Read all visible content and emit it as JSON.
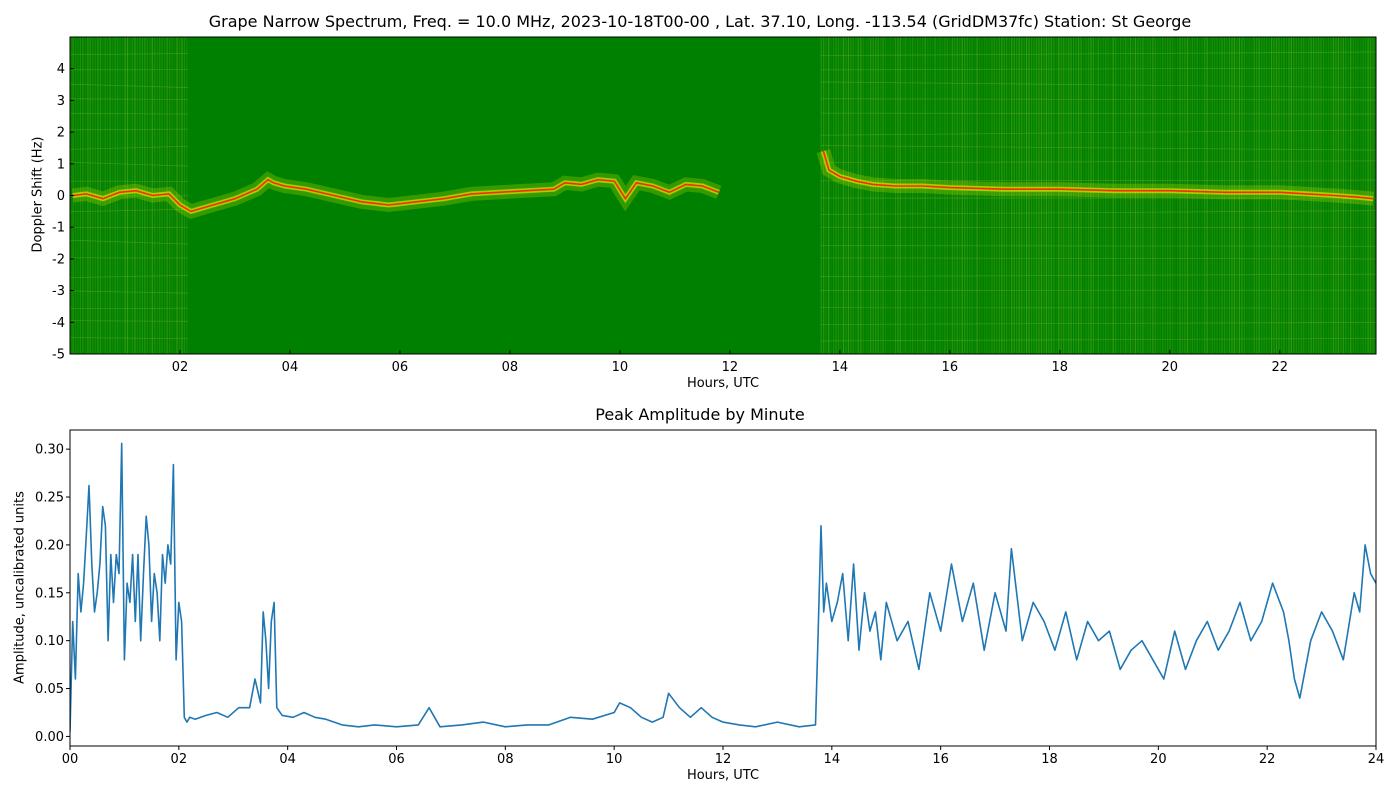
{
  "chart_data": [
    {
      "type": "heatmap",
      "title": "Grape Narrow Spectrum, Freq. = 10.0 MHz, 2023-10-18T00-00 , Lat.  37.10, Long. -113.54 (GridDM37fc) Station: St George",
      "xlabel": "Hours, UTC",
      "ylabel": "Doppler Shift (Hz)",
      "xlim": [
        0,
        23.75
      ],
      "ylim": [
        -5,
        5
      ],
      "x_ticks": [
        "02",
        "04",
        "06",
        "08",
        "10",
        "12",
        "14",
        "16",
        "18",
        "20",
        "22"
      ],
      "x_tick_values": [
        2,
        4,
        6,
        8,
        10,
        12,
        14,
        16,
        18,
        20,
        22
      ],
      "y_ticks": [
        "-5",
        "-4",
        "-3",
        "-2",
        "-1",
        "0",
        "1",
        "2",
        "3",
        "4"
      ],
      "y_tick_values": [
        -5,
        -4,
        -3,
        -2,
        -1,
        0,
        1,
        2,
        3,
        4
      ],
      "colors": {
        "background": "#008000",
        "mid": "#d4e600",
        "high": "#ff2a00"
      },
      "doppler_trace": {
        "x": [
          0.05,
          0.3,
          0.6,
          0.9,
          1.2,
          1.5,
          1.8,
          2.0,
          2.2,
          2.6,
          3.0,
          3.4,
          3.6,
          3.7,
          3.9,
          4.3,
          4.8,
          5.3,
          5.8,
          6.3,
          6.8,
          7.3,
          7.8,
          8.3,
          8.8,
          9.0,
          9.3,
          9.6,
          9.9,
          10.1,
          10.3,
          10.6,
          10.9,
          11.2,
          11.5,
          11.8,
          13.7,
          13.8,
          14.0,
          14.3,
          14.6,
          15.0,
          15.5,
          16.0,
          17.0,
          18.0,
          19.0,
          20.0,
          21.0,
          22.0,
          22.5,
          23.0,
          23.4,
          23.7
        ],
        "y": [
          0.0,
          0.05,
          -0.1,
          0.1,
          0.15,
          0.0,
          0.05,
          -0.3,
          -0.5,
          -0.3,
          -0.1,
          0.2,
          0.5,
          0.4,
          0.3,
          0.2,
          0.0,
          -0.2,
          -0.3,
          -0.2,
          -0.1,
          0.05,
          0.1,
          0.15,
          0.2,
          0.4,
          0.35,
          0.5,
          0.45,
          -0.1,
          0.4,
          0.3,
          0.1,
          0.35,
          0.3,
          0.1,
          1.4,
          0.8,
          0.6,
          0.45,
          0.35,
          0.3,
          0.3,
          0.25,
          0.2,
          0.2,
          0.15,
          0.15,
          0.1,
          0.1,
          0.05,
          0.0,
          -0.05,
          -0.1
        ]
      }
    },
    {
      "type": "line",
      "title": "Peak Amplitude by Minute",
      "xlabel": "Hours, UTC",
      "ylabel": "Amplitude, uncalibrated units",
      "xlim": [
        0,
        24
      ],
      "ylim": [
        -0.01,
        0.32
      ],
      "x_ticks": [
        "00",
        "02",
        "04",
        "06",
        "08",
        "10",
        "12",
        "14",
        "16",
        "18",
        "20",
        "22",
        "24"
      ],
      "x_tick_values": [
        0,
        2,
        4,
        6,
        8,
        10,
        12,
        14,
        16,
        18,
        20,
        22,
        24
      ],
      "y_ticks": [
        "0.00",
        "0.05",
        "0.10",
        "0.15",
        "0.20",
        "0.25",
        "0.30"
      ],
      "y_tick_values": [
        0,
        0.05,
        0.1,
        0.15,
        0.2,
        0.25,
        0.3
      ],
      "line_color": "#1f77b4",
      "series": [
        {
          "x": [
            0.0,
            0.05,
            0.1,
            0.15,
            0.2,
            0.25,
            0.3,
            0.35,
            0.4,
            0.45,
            0.5,
            0.55,
            0.6,
            0.65,
            0.7,
            0.75,
            0.8,
            0.85,
            0.9,
            0.95,
            1.0,
            1.05,
            1.1,
            1.15,
            1.2,
            1.25,
            1.3,
            1.35,
            1.4,
            1.45,
            1.5,
            1.55,
            1.6,
            1.65,
            1.7,
            1.75,
            1.8,
            1.85,
            1.9,
            1.95,
            2.0,
            2.05,
            2.1,
            2.15,
            2.2,
            2.3,
            2.5,
            2.7,
            2.9,
            3.1,
            3.3,
            3.4,
            3.5,
            3.55,
            3.6,
            3.65,
            3.7,
            3.75,
            3.8,
            3.9,
            4.1,
            4.3,
            4.5,
            4.7,
            5.0,
            5.3,
            5.6,
            6.0,
            6.4,
            6.6,
            6.8,
            7.2,
            7.6,
            8.0,
            8.4,
            8.8,
            9.2,
            9.6,
            10.0,
            10.1,
            10.3,
            10.5,
            10.7,
            10.9,
            11.0,
            11.2,
            11.4,
            11.6,
            11.8,
            12.0,
            12.3,
            12.6,
            13.0,
            13.4,
            13.7,
            13.75,
            13.8,
            13.85,
            13.9,
            14.0,
            14.1,
            14.2,
            14.3,
            14.4,
            14.5,
            14.6,
            14.7,
            14.8,
            14.9,
            15.0,
            15.2,
            15.4,
            15.6,
            15.8,
            16.0,
            16.2,
            16.4,
            16.6,
            16.8,
            17.0,
            17.2,
            17.3,
            17.5,
            17.7,
            17.9,
            18.1,
            18.3,
            18.5,
            18.7,
            18.9,
            19.1,
            19.3,
            19.5,
            19.7,
            19.9,
            20.1,
            20.3,
            20.5,
            20.7,
            20.9,
            21.1,
            21.3,
            21.5,
            21.7,
            21.9,
            22.1,
            22.3,
            22.4,
            22.5,
            22.6,
            22.8,
            23.0,
            23.2,
            23.4,
            23.6,
            23.7,
            23.8,
            23.9,
            24.0
          ],
          "values": [
            0.005,
            0.12,
            0.06,
            0.17,
            0.13,
            0.16,
            0.21,
            0.262,
            0.18,
            0.13,
            0.15,
            0.18,
            0.24,
            0.22,
            0.1,
            0.19,
            0.14,
            0.19,
            0.17,
            0.306,
            0.08,
            0.16,
            0.14,
            0.19,
            0.12,
            0.19,
            0.1,
            0.17,
            0.23,
            0.2,
            0.12,
            0.17,
            0.15,
            0.1,
            0.19,
            0.16,
            0.2,
            0.18,
            0.284,
            0.08,
            0.14,
            0.12,
            0.02,
            0.015,
            0.02,
            0.018,
            0.022,
            0.025,
            0.02,
            0.03,
            0.03,
            0.06,
            0.035,
            0.13,
            0.1,
            0.05,
            0.12,
            0.14,
            0.03,
            0.022,
            0.02,
            0.025,
            0.02,
            0.018,
            0.012,
            0.01,
            0.012,
            0.01,
            0.012,
            0.03,
            0.01,
            0.012,
            0.015,
            0.01,
            0.012,
            0.012,
            0.02,
            0.018,
            0.025,
            0.035,
            0.03,
            0.02,
            0.015,
            0.02,
            0.045,
            0.03,
            0.02,
            0.03,
            0.02,
            0.015,
            0.012,
            0.01,
            0.015,
            0.01,
            0.012,
            0.11,
            0.22,
            0.13,
            0.16,
            0.12,
            0.14,
            0.17,
            0.1,
            0.18,
            0.09,
            0.15,
            0.11,
            0.13,
            0.08,
            0.14,
            0.1,
            0.12,
            0.07,
            0.15,
            0.11,
            0.18,
            0.12,
            0.16,
            0.09,
            0.15,
            0.11,
            0.196,
            0.1,
            0.14,
            0.12,
            0.09,
            0.13,
            0.08,
            0.12,
            0.1,
            0.11,
            0.07,
            0.09,
            0.1,
            0.08,
            0.06,
            0.11,
            0.07,
            0.1,
            0.12,
            0.09,
            0.11,
            0.14,
            0.1,
            0.12,
            0.16,
            0.13,
            0.1,
            0.06,
            0.04,
            0.1,
            0.13,
            0.11,
            0.08,
            0.15,
            0.13,
            0.2,
            0.17,
            0.16
          ]
        }
      ]
    }
  ]
}
